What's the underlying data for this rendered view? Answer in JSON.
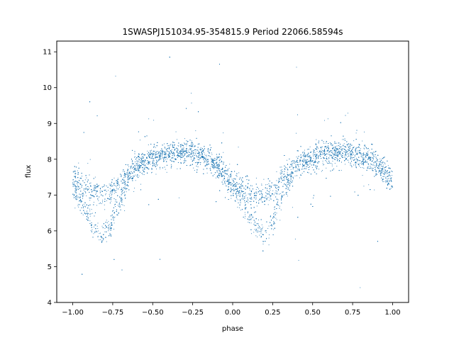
{
  "chart_data": {
    "type": "scatter",
    "title": "1SWASPJ151034.95-354815.9 Period 22066.58594s",
    "xlabel": "phase",
    "ylabel": "flux",
    "xlim": [
      -1.1,
      1.1
    ],
    "ylim": [
      4.0,
      11.3
    ],
    "xticks": [
      -1.0,
      -0.75,
      -0.5,
      -0.25,
      0.0,
      0.25,
      0.5,
      0.75,
      1.0
    ],
    "xtick_labels": [
      "−1.00",
      "−0.75",
      "−0.50",
      "−0.25",
      "0.00",
      "0.25",
      "0.50",
      "0.75",
      "1.00"
    ],
    "yticks": [
      4,
      5,
      6,
      7,
      8,
      9,
      10,
      11
    ],
    "ytick_labels": [
      "4",
      "5",
      "6",
      "7",
      "8",
      "9",
      "10",
      "11"
    ],
    "grid": false,
    "legend": false,
    "marker_color": "#1f77b4",
    "series": [
      {
        "name": "",
        "profile_x": [
          -1.0,
          -0.9,
          -0.8,
          -0.7,
          -0.6,
          -0.5,
          -0.4,
          -0.3,
          -0.2,
          -0.1,
          0.0,
          0.1,
          0.2,
          0.3,
          0.4,
          0.5,
          0.6,
          0.7,
          0.8,
          0.9,
          1.0
        ],
        "profile_flux_upper": [
          7.5,
          7.2,
          7.0,
          7.4,
          7.8,
          8.0,
          8.15,
          8.2,
          8.1,
          7.8,
          7.4,
          7.1,
          7.0,
          7.4,
          7.8,
          8.0,
          8.15,
          8.2,
          8.1,
          7.9,
          7.5
        ],
        "profile_flux_lower": [
          7.2,
          6.4,
          5.9,
          6.9,
          7.8,
          8.0,
          8.15,
          8.2,
          8.1,
          7.8,
          7.2,
          6.5,
          5.9,
          6.9,
          7.8,
          8.0,
          8.15,
          8.2,
          8.1,
          7.9,
          7.3
        ]
      }
    ]
  }
}
